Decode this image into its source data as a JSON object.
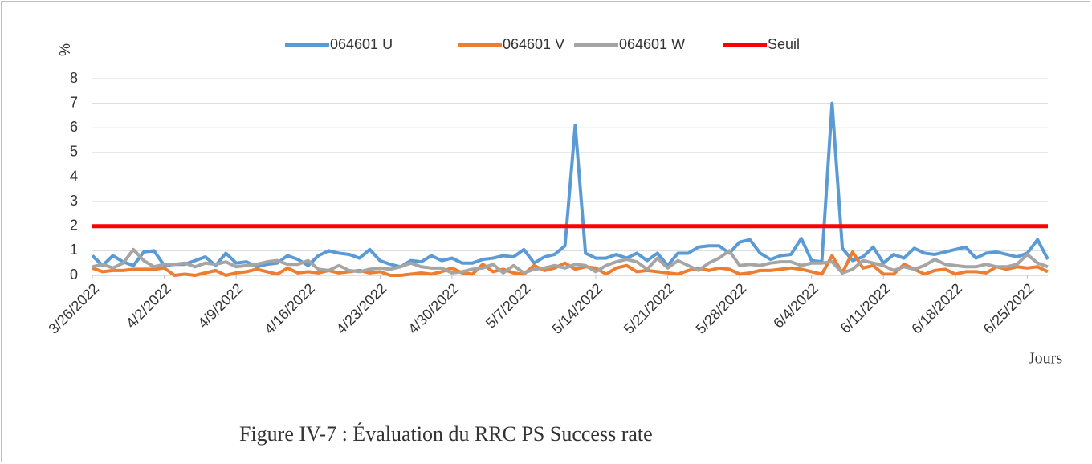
{
  "chart_data": {
    "type": "line",
    "y_label": "%",
    "x_label": "Jours",
    "caption": "Figure IV-7 : Évaluation du RRC PS Success rate",
    "x": [
      "3/26/2022",
      "3/27/2022",
      "3/28/2022",
      "3/29/2022",
      "3/30/2022",
      "3/31/2022",
      "4/1/2022",
      "4/2/2022",
      "4/3/2022",
      "4/4/2022",
      "4/5/2022",
      "4/6/2022",
      "4/7/2022",
      "4/8/2022",
      "4/9/2022",
      "4/10/2022",
      "4/11/2022",
      "4/12/2022",
      "4/13/2022",
      "4/14/2022",
      "4/15/2022",
      "4/16/2022",
      "4/17/2022",
      "4/18/2022",
      "4/19/2022",
      "4/20/2022",
      "4/21/2022",
      "4/22/2022",
      "4/23/2022",
      "4/24/2022",
      "4/25/2022",
      "4/26/2022",
      "4/27/2022",
      "4/28/2022",
      "4/29/2022",
      "4/30/2022",
      "5/1/2022",
      "5/2/2022",
      "5/3/2022",
      "5/4/2022",
      "5/5/2022",
      "5/6/2022",
      "5/7/2022",
      "5/8/2022",
      "5/9/2022",
      "5/10/2022",
      "5/11/2022",
      "5/12/2022",
      "5/13/2022",
      "5/14/2022",
      "5/15/2022",
      "5/16/2022",
      "5/17/2022",
      "5/18/2022",
      "5/19/2022",
      "5/20/2022",
      "5/21/2022",
      "5/22/2022",
      "5/23/2022",
      "5/24/2022",
      "5/25/2022",
      "5/26/2022",
      "5/27/2022",
      "5/28/2022",
      "5/29/2022",
      "5/30/2022",
      "5/31/2022",
      "6/1/2022",
      "6/2/2022",
      "6/3/2022",
      "6/4/2022",
      "6/5/2022",
      "6/6/2022",
      "6/7/2022",
      "6/8/2022",
      "6/9/2022",
      "6/10/2022",
      "6/11/2022",
      "6/12/2022",
      "6/13/2022",
      "6/14/2022",
      "6/15/2022",
      "6/16/2022",
      "6/17/2022",
      "6/18/2022",
      "6/19/2022",
      "6/20/2022",
      "6/21/2022",
      "6/22/2022",
      "6/23/2022",
      "6/24/2022",
      "6/25/2022",
      "6/26/2022",
      "6/27/2022"
    ],
    "series": [
      {
        "name": "064601 U",
        "color": "#5b9bd5",
        "values": [
          0.8,
          0.4,
          0.8,
          0.55,
          0.4,
          0.95,
          1.0,
          0.4,
          0.45,
          0.45,
          0.6,
          0.75,
          0.4,
          0.9,
          0.5,
          0.55,
          0.35,
          0.45,
          0.5,
          0.8,
          0.65,
          0.4,
          0.8,
          1.0,
          0.9,
          0.85,
          0.7,
          1.05,
          0.6,
          0.45,
          0.35,
          0.6,
          0.55,
          0.8,
          0.6,
          0.7,
          0.5,
          0.5,
          0.65,
          0.7,
          0.8,
          0.75,
          1.05,
          0.5,
          0.75,
          0.85,
          1.2,
          6.1,
          0.9,
          0.7,
          0.7,
          0.85,
          0.7,
          0.9,
          0.6,
          0.9,
          0.4,
          0.9,
          0.9,
          1.15,
          1.2,
          1.2,
          0.9,
          1.35,
          1.45,
          0.9,
          0.65,
          0.8,
          0.85,
          1.5,
          0.6,
          0.55,
          7.0,
          1.1,
          0.6,
          0.75,
          1.15,
          0.5,
          0.85,
          0.7,
          1.1,
          0.9,
          0.85,
          0.95,
          1.05,
          1.15,
          0.7,
          0.9,
          0.95,
          0.85,
          0.75,
          0.9,
          1.45,
          0.65
        ]
      },
      {
        "name": "064601 V",
        "color": "#ed7d31",
        "values": [
          0.3,
          0.15,
          0.2,
          0.2,
          0.25,
          0.25,
          0.25,
          0.3,
          0.0,
          0.05,
          0.0,
          0.1,
          0.2,
          0.0,
          0.1,
          0.15,
          0.25,
          0.15,
          0.05,
          0.3,
          0.1,
          0.15,
          0.1,
          0.2,
          0.1,
          0.15,
          0.2,
          0.1,
          0.15,
          0.0,
          0.0,
          0.05,
          0.1,
          0.05,
          0.15,
          0.3,
          0.1,
          0.05,
          0.45,
          0.15,
          0.25,
          0.1,
          0.05,
          0.4,
          0.2,
          0.3,
          0.5,
          0.25,
          0.35,
          0.3,
          0.05,
          0.3,
          0.4,
          0.15,
          0.2,
          0.15,
          0.1,
          0.05,
          0.2,
          0.3,
          0.2,
          0.3,
          0.25,
          0.05,
          0.1,
          0.2,
          0.2,
          0.25,
          0.3,
          0.25,
          0.15,
          0.05,
          0.8,
          0.1,
          0.95,
          0.3,
          0.4,
          0.05,
          0.05,
          0.45,
          0.25,
          0.05,
          0.2,
          0.25,
          0.05,
          0.15,
          0.15,
          0.1,
          0.35,
          0.25,
          0.35,
          0.3,
          0.35,
          0.15
        ]
      },
      {
        "name": "064601 W",
        "color": "#a5a5a5",
        "values": [
          0.35,
          0.45,
          0.3,
          0.5,
          1.05,
          0.6,
          0.35,
          0.45,
          0.45,
          0.5,
          0.35,
          0.5,
          0.45,
          0.55,
          0.35,
          0.4,
          0.45,
          0.55,
          0.6,
          0.45,
          0.45,
          0.6,
          0.25,
          0.2,
          0.4,
          0.2,
          0.15,
          0.25,
          0.3,
          0.25,
          0.35,
          0.5,
          0.35,
          0.3,
          0.3,
          0.1,
          0.15,
          0.25,
          0.3,
          0.45,
          0.1,
          0.4,
          0.1,
          0.25,
          0.3,
          0.4,
          0.3,
          0.45,
          0.4,
          0.15,
          0.4,
          0.55,
          0.65,
          0.55,
          0.25,
          0.7,
          0.3,
          0.6,
          0.4,
          0.2,
          0.5,
          0.7,
          1.0,
          0.4,
          0.45,
          0.4,
          0.5,
          0.55,
          0.55,
          0.4,
          0.5,
          0.5,
          0.55,
          0.1,
          0.25,
          0.6,
          0.5,
          0.4,
          0.2,
          0.35,
          0.25,
          0.4,
          0.65,
          0.45,
          0.4,
          0.35,
          0.35,
          0.45,
          0.35,
          0.35,
          0.45,
          0.85,
          0.5,
          0.35
        ]
      },
      {
        "name": "Seuil",
        "color": "#ff0000",
        "values": [
          2,
          2,
          2,
          2,
          2,
          2,
          2,
          2,
          2,
          2,
          2,
          2,
          2,
          2,
          2,
          2,
          2,
          2,
          2,
          2,
          2,
          2,
          2,
          2,
          2,
          2,
          2,
          2,
          2,
          2,
          2,
          2,
          2,
          2,
          2,
          2,
          2,
          2,
          2,
          2,
          2,
          2,
          2,
          2,
          2,
          2,
          2,
          2,
          2,
          2,
          2,
          2,
          2,
          2,
          2,
          2,
          2,
          2,
          2,
          2,
          2,
          2,
          2,
          2,
          2,
          2,
          2,
          2,
          2,
          2,
          2,
          2,
          2,
          2,
          2,
          2,
          2,
          2,
          2,
          2,
          2,
          2,
          2,
          2,
          2,
          2,
          2,
          2,
          2,
          2,
          2,
          2,
          2,
          2
        ]
      }
    ],
    "ylim": [
      0,
      8
    ],
    "yticks": [
      0,
      1,
      2,
      3,
      4,
      5,
      6,
      7,
      8
    ],
    "xticks": [
      "3/26/2022",
      "4/2/2022",
      "4/9/2022",
      "4/16/2022",
      "4/23/2022",
      "4/30/2022",
      "5/7/2022",
      "5/14/2022",
      "5/21/2022",
      "5/28/2022",
      "6/4/2022",
      "6/11/2022",
      "6/18/2022",
      "6/25/2022"
    ],
    "grid": true,
    "legend": "top"
  }
}
